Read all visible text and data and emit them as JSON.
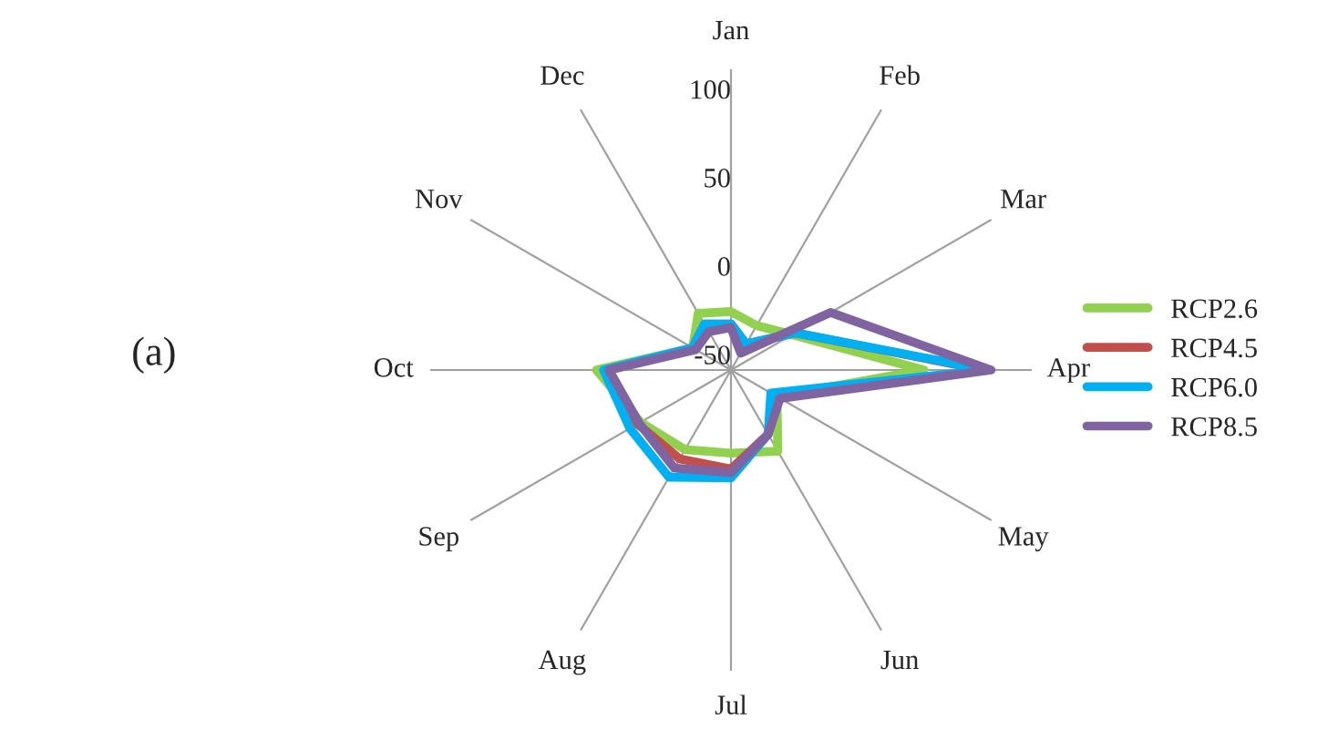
{
  "chart_data": {
    "type": "radar",
    "categories": [
      "Jan",
      "Feb",
      "Mar",
      "Apr",
      "May",
      "Jun",
      "Jul",
      "Aug",
      "Sep",
      "Oct",
      "Nov",
      "Dec"
    ],
    "ylim": [
      -50,
      120
    ],
    "yticks": [
      -50,
      0,
      50,
      100
    ],
    "grid": "x",
    "legend": "right",
    "marker": "none",
    "line_style": "solid",
    "annotations": [
      "(a)"
    ],
    "series": [
      {
        "name": "RCP2.6",
        "color": "#92d050",
        "values": [
          -17,
          -21,
          -10,
          59,
          -20,
          3,
          -3,
          2,
          9,
          26,
          -25,
          -13
        ]
      },
      {
        "name": "RCP4.5",
        "color": "#c0504d",
        "values": [
          -24,
          -33,
          -8,
          93,
          -20,
          -8,
          6,
          8,
          11,
          19,
          -25,
          -20
        ]
      },
      {
        "name": "RCP6.0",
        "color": "#00b0f0",
        "values": [
          -24,
          -33,
          -8,
          95,
          -24,
          -8,
          11,
          20,
          16,
          22,
          -25,
          -20
        ]
      },
      {
        "name": "RCP8.5",
        "color": "#8064a2",
        "values": [
          -26,
          -39,
          15,
          97,
          -18,
          -8,
          8,
          14,
          10,
          19,
          -27,
          -25
        ]
      }
    ]
  }
}
